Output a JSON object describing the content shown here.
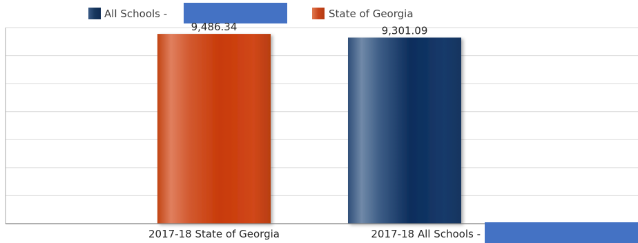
{
  "legend": {
    "items": [
      {
        "label": "All Schools -",
        "color": "#1f3d6b",
        "redacted": true,
        "redaction_color": "#4472c4"
      },
      {
        "label": "State of Georgia",
        "color": "#c9461c"
      }
    ]
  },
  "chart_data": {
    "type": "bar",
    "categories": [
      "2017-18 State of Georgia",
      "2017-18 All Schools -"
    ],
    "values": [
      9486.34,
      9301.09
    ],
    "value_labels": [
      "9,486.34",
      "9,301.09"
    ],
    "series_colors": [
      "#c9461c",
      "#17375e"
    ],
    "ylim": [
      0,
      9800
    ],
    "grid": true,
    "legend_position": "top-left",
    "redacted_category": 1,
    "redaction_color": "#4472c4"
  }
}
